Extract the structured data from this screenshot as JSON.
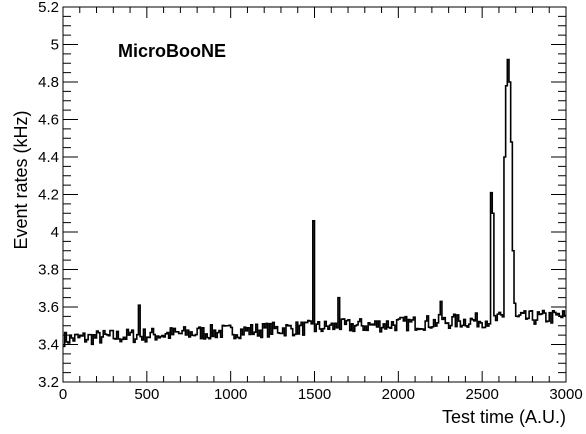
{
  "chart_data": {
    "type": "line",
    "style": "step",
    "xlabel": "Test time (A.U.)",
    "ylabel": "Event rates (kHz)",
    "annotation": "MicroBooNE",
    "xlim": [
      0,
      3000
    ],
    "ylim": [
      3.2,
      5.2
    ],
    "x_ticks": [
      0,
      500,
      1000,
      1500,
      2000,
      2500,
      3000
    ],
    "y_ticks": [
      3.2,
      3.4,
      3.6,
      3.8,
      4,
      4.2,
      4.4,
      4.6,
      4.8,
      5,
      5.2
    ],
    "grid": false,
    "bin_width": 10,
    "spikes": [
      {
        "x": 450,
        "y": 3.61
      },
      {
        "x": 1490,
        "y": 4.06
      },
      {
        "x": 1640,
        "y": 3.65
      },
      {
        "x": 2250,
        "y": 3.63
      },
      {
        "x": 2550,
        "y": 4.21
      },
      {
        "x": 2560,
        "y": 4.1
      },
      {
        "x": 2630,
        "y": 4.4
      },
      {
        "x": 2640,
        "y": 4.78
      },
      {
        "x": 2650,
        "y": 4.92
      },
      {
        "x": 2660,
        "y": 4.8
      },
      {
        "x": 2670,
        "y": 4.48
      },
      {
        "x": 2680,
        "y": 3.9
      },
      {
        "x": 2690,
        "y": 3.62
      }
    ],
    "baseline": {
      "start_x": 0,
      "start_y": 3.43,
      "end_x": 3000,
      "end_y": 3.55,
      "spread": 0.04
    }
  }
}
